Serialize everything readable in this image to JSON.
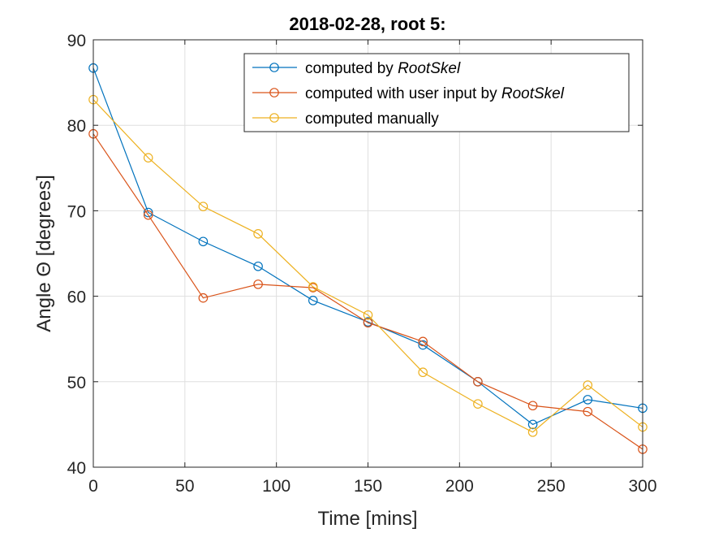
{
  "chart_data": {
    "type": "line",
    "title": "2018-02-28, root 5:",
    "xlabel": "Time [mins]",
    "ylabel": "Angle Θ [degrees]",
    "xlim": [
      0,
      300
    ],
    "ylim": [
      40,
      90
    ],
    "xticks": [
      "0",
      "50",
      "100",
      "150",
      "200",
      "250",
      "300"
    ],
    "yticks": [
      "40",
      "50",
      "60",
      "70",
      "80",
      "90"
    ],
    "grid": true,
    "legend_position": "top-right",
    "x": [
      0,
      30,
      60,
      90,
      120,
      150,
      180,
      210,
      240,
      270,
      300
    ],
    "series": [
      {
        "name": "computed by RootSkel",
        "legend_prefix": "computed by ",
        "legend_italic": "RootSkel",
        "color": "#0072BD",
        "values": [
          86.7,
          69.8,
          66.4,
          63.5,
          59.5,
          57.0,
          54.3,
          50.0,
          45.0,
          47.9,
          46.9
        ]
      },
      {
        "name": "computed with user input by RootSkel",
        "legend_prefix": "computed with user input by ",
        "legend_italic": "RootSkel",
        "color": "#D95319",
        "values": [
          79.0,
          69.5,
          59.8,
          61.4,
          61.0,
          56.9,
          54.7,
          50.0,
          47.2,
          46.5,
          42.1
        ]
      },
      {
        "name": "computed manually",
        "legend_prefix": "computed manually",
        "legend_italic": "",
        "color": "#EDB120",
        "values": [
          83.0,
          76.2,
          70.5,
          67.3,
          61.1,
          57.8,
          51.1,
          47.4,
          44.1,
          49.6,
          44.7
        ]
      }
    ]
  }
}
